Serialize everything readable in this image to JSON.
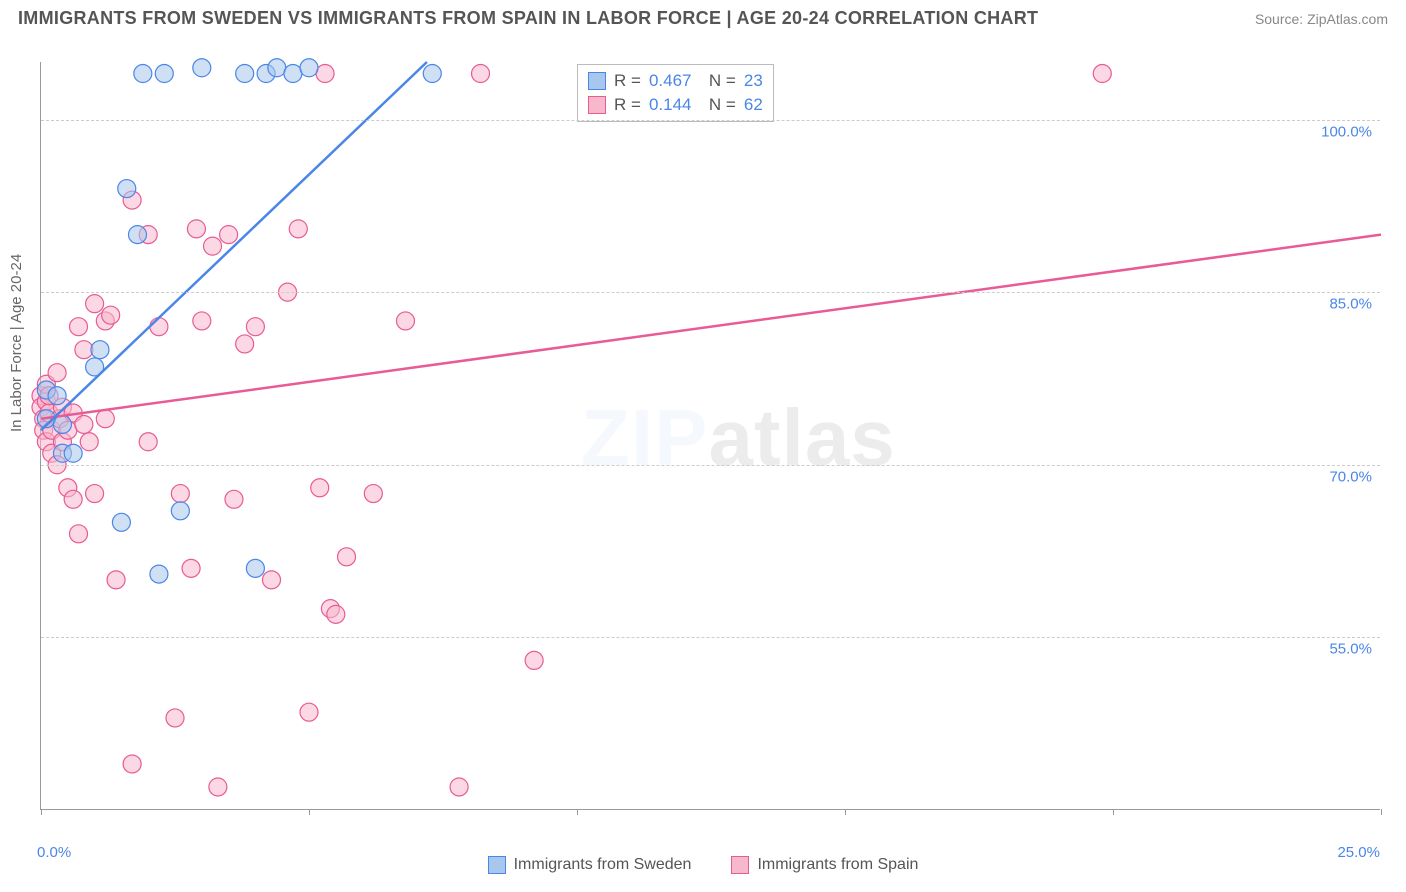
{
  "header": {
    "title": "IMMIGRANTS FROM SWEDEN VS IMMIGRANTS FROM SPAIN IN LABOR FORCE | AGE 20-24 CORRELATION CHART",
    "source": "Source: ZipAtlas.com"
  },
  "chart": {
    "type": "scatter",
    "y_axis_label": "In Labor Force | Age 20-24",
    "background_color": "#ffffff",
    "grid_color": "#cccccc",
    "axis_color": "#999999",
    "tick_color": "#4a86e8",
    "title_fontsize": 18,
    "label_fontsize": 15,
    "xlim": [
      0,
      25
    ],
    "ylim": [
      40,
      105
    ],
    "y_ticks": [
      55.0,
      70.0,
      85.0,
      100.0
    ],
    "y_tick_labels": [
      "55.0%",
      "70.0%",
      "85.0%",
      "100.0%"
    ],
    "x_ticks": [
      0,
      5,
      10,
      15,
      20,
      25
    ],
    "x_tick_labels": {
      "start": "0.0%",
      "end": "25.0%"
    },
    "marker_radius": 9,
    "line_width": 2.5,
    "watermark": "ZIPatlas",
    "series": [
      {
        "name": "Immigrants from Sweden",
        "fill_color": "#a7c7ec",
        "stroke_color": "#4a86e8",
        "fill_opacity": 0.55,
        "R": "0.467",
        "N": "23",
        "trend": {
          "x1": 0.0,
          "y1": 73.0,
          "x2": 7.2,
          "y2": 105.0
        },
        "points": [
          [
            0.1,
            76.5
          ],
          [
            0.1,
            74.0
          ],
          [
            0.3,
            76.0
          ],
          [
            0.4,
            73.5
          ],
          [
            0.4,
            71.0
          ],
          [
            0.6,
            71.0
          ],
          [
            1.0,
            78.5
          ],
          [
            1.1,
            80.0
          ],
          [
            1.5,
            65.0
          ],
          [
            1.6,
            94.0
          ],
          [
            1.8,
            90.0
          ],
          [
            1.9,
            104.0
          ],
          [
            2.2,
            60.5
          ],
          [
            2.3,
            104.0
          ],
          [
            2.6,
            66.0
          ],
          [
            3.0,
            104.5
          ],
          [
            3.8,
            104.0
          ],
          [
            4.0,
            61.0
          ],
          [
            4.2,
            104.0
          ],
          [
            4.4,
            104.5
          ],
          [
            4.7,
            104.0
          ],
          [
            5.0,
            104.5
          ],
          [
            7.3,
            104.0
          ]
        ]
      },
      {
        "name": "Immigrants from Spain",
        "fill_color": "#f7b8cc",
        "stroke_color": "#e85b94",
        "fill_opacity": 0.55,
        "R": "0.144",
        "N": "62",
        "trend": {
          "x1": 0.0,
          "y1": 74.0,
          "x2": 25.0,
          "y2": 90.0
        },
        "points": [
          [
            0.0,
            76.0
          ],
          [
            0.0,
            75.0
          ],
          [
            0.05,
            74.0
          ],
          [
            0.05,
            73.0
          ],
          [
            0.1,
            75.5
          ],
          [
            0.1,
            77.0
          ],
          [
            0.1,
            72.0
          ],
          [
            0.15,
            74.5
          ],
          [
            0.15,
            76.0
          ],
          [
            0.2,
            71.0
          ],
          [
            0.2,
            73.0
          ],
          [
            0.3,
            78.0
          ],
          [
            0.3,
            70.0
          ],
          [
            0.35,
            74.0
          ],
          [
            0.4,
            75.0
          ],
          [
            0.4,
            72.0
          ],
          [
            0.5,
            68.0
          ],
          [
            0.5,
            73.0
          ],
          [
            0.6,
            67.0
          ],
          [
            0.6,
            74.5
          ],
          [
            0.7,
            64.0
          ],
          [
            0.7,
            82.0
          ],
          [
            0.8,
            80.0
          ],
          [
            0.8,
            73.5
          ],
          [
            0.9,
            72.0
          ],
          [
            1.0,
            67.5
          ],
          [
            1.0,
            84.0
          ],
          [
            1.2,
            74.0
          ],
          [
            1.2,
            82.5
          ],
          [
            1.3,
            83.0
          ],
          [
            1.4,
            60.0
          ],
          [
            1.7,
            93.0
          ],
          [
            1.7,
            44.0
          ],
          [
            2.0,
            90.0
          ],
          [
            2.0,
            72.0
          ],
          [
            2.2,
            82.0
          ],
          [
            2.5,
            48.0
          ],
          [
            2.6,
            67.5
          ],
          [
            2.8,
            61.0
          ],
          [
            2.9,
            90.5
          ],
          [
            3.0,
            82.5
          ],
          [
            3.2,
            89.0
          ],
          [
            3.3,
            42.0
          ],
          [
            3.5,
            90.0
          ],
          [
            3.6,
            67.0
          ],
          [
            3.8,
            80.5
          ],
          [
            4.0,
            82.0
          ],
          [
            4.3,
            60.0
          ],
          [
            4.6,
            85.0
          ],
          [
            4.8,
            90.5
          ],
          [
            5.2,
            68.0
          ],
          [
            5.3,
            104.0
          ],
          [
            5.4,
            57.5
          ],
          [
            5.5,
            57.0
          ],
          [
            5.7,
            62.0
          ],
          [
            6.2,
            67.5
          ],
          [
            6.8,
            82.5
          ],
          [
            7.8,
            42.0
          ],
          [
            8.2,
            104.0
          ],
          [
            9.2,
            53.0
          ],
          [
            19.8,
            104.0
          ],
          [
            5.0,
            48.5
          ]
        ]
      }
    ],
    "bottom_legend": [
      {
        "label": "Immigrants from Sweden",
        "fill": "#a7c7ec",
        "stroke": "#4a86e8"
      },
      {
        "label": "Immigrants from Spain",
        "fill": "#f7b8cc",
        "stroke": "#e85b94"
      }
    ]
  }
}
